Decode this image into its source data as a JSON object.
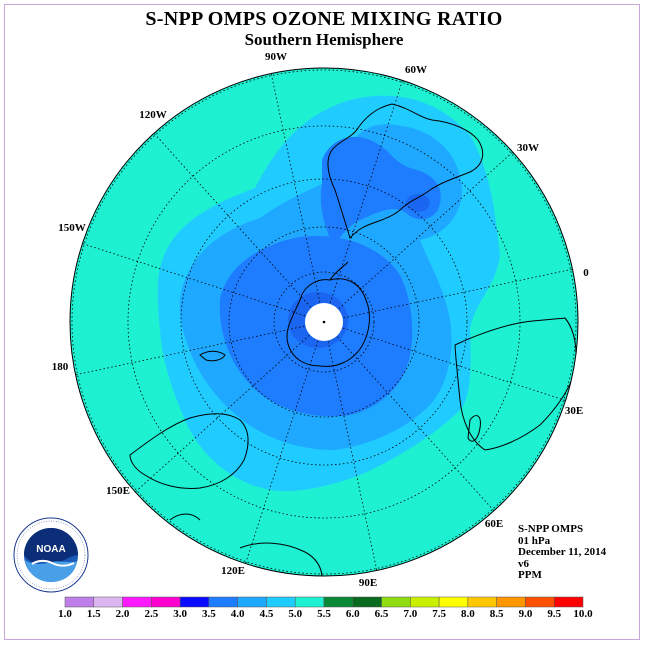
{
  "title": "S-NPP OMPS OZONE MIXING RATIO",
  "subtitle": "Southern Hemisphere",
  "longitude_labels": [
    "90W",
    "60W",
    "30W",
    "0",
    "30E",
    "60E",
    "90E",
    "120E",
    "150E",
    "180",
    "150W",
    "120W"
  ],
  "info": {
    "instrument": "S-NPP OMPS",
    "level": "01 hPa",
    "date": "December 11, 2014",
    "version": "v6",
    "units": "PPM"
  },
  "logo_text": "NOAA",
  "colorbar": {
    "ticks": [
      "1.0",
      "1.5",
      "2.0",
      "2.5",
      "3.0",
      "3.5",
      "4.0",
      "4.5",
      "5.0",
      "5.5",
      "6.0",
      "6.5",
      "7.0",
      "7.5",
      "8.0",
      "8.5",
      "9.0",
      "9.5",
      "10.0"
    ],
    "colors": [
      "#bf7fe8",
      "#dcb6f0",
      "#ff19ff",
      "#ff00d0",
      "#0a0aff",
      "#1e7cff",
      "#1ea8ff",
      "#20ccff",
      "#1ef0d2",
      "#0a8a36",
      "#0a6a1e",
      "#8fdc10",
      "#c8f000",
      "#ffff00",
      "#ffc800",
      "#ff9600",
      "#ff5000",
      "#ff0000",
      "#8c5a3c"
    ]
  },
  "ozone_colors": {
    "c3_5": "#1e7cff",
    "c4_0": "#1ea8ff",
    "c4_5": "#20ccff",
    "c5_0": "#1ef0d2"
  }
}
